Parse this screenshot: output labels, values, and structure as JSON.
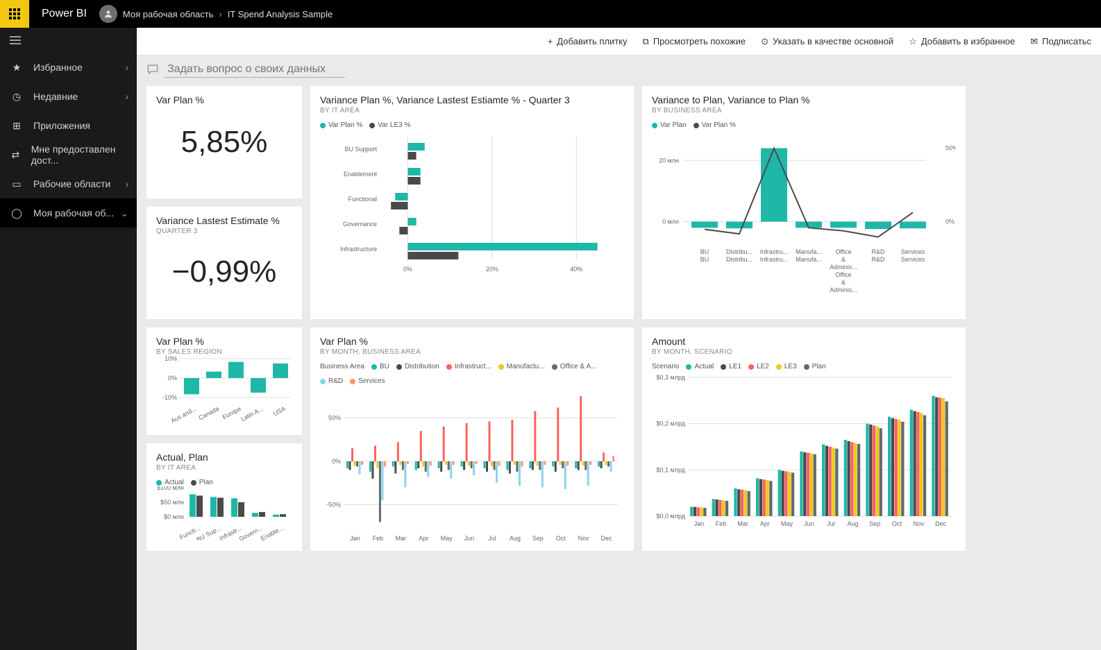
{
  "brand": "Power BI",
  "breadcrumb": {
    "workspace": "Моя рабочая область",
    "report": "IT Spend Analysis Sample"
  },
  "sidebar": {
    "items": [
      {
        "icon": "★",
        "label": "Избранное",
        "chev": "›"
      },
      {
        "icon": "◷",
        "label": "Недавние",
        "chev": "›"
      },
      {
        "icon": "⊞",
        "label": "Приложения",
        "chev": ""
      },
      {
        "icon": "⇄",
        "label": "Мне предоставлен дост...",
        "chev": ""
      },
      {
        "icon": "▭",
        "label": "Рабочие области",
        "chev": "›"
      },
      {
        "icon": "◯",
        "label": "Моя рабочая об...",
        "chev": "⌄"
      }
    ]
  },
  "toolbar": [
    {
      "icon": "+",
      "label": "Добавить плитку"
    },
    {
      "icon": "⧉",
      "label": "Просмотреть похожие"
    },
    {
      "icon": "⊙",
      "label": "Указать в качестве основной"
    },
    {
      "icon": "☆",
      "label": "Добавить в избранное"
    },
    {
      "icon": "✉",
      "label": "Подписатьс"
    }
  ],
  "qna_placeholder": "Задать вопрос о своих данных",
  "colors": {
    "teal": "#1fb8a8",
    "dark": "#4a4a4a",
    "yellow": "#f2c811",
    "red": "#fd625e",
    "blue": "#5f6b6d",
    "lightblue": "#8ad4eb",
    "orange": "#fe9666",
    "purple": "#a66999",
    "grid": "#e0e0e0",
    "text": "#666"
  },
  "tiles": {
    "kpi1": {
      "title": "Var Plan %",
      "value": "5,85%"
    },
    "kpi2": {
      "title": "Variance Lastest Estimate %",
      "sub": "QUARTER 3",
      "value": "−0,99%"
    },
    "hbar": {
      "title": "Variance Plan %, Variance Lastest Estiamte % - Quarter 3",
      "sub": "BY IT AREA",
      "legend": [
        {
          "label": "Var Plan %",
          "c": "teal"
        },
        {
          "label": "Var LE3 %",
          "c": "dark"
        }
      ],
      "categories": [
        "BU Support",
        "Enablement",
        "Functional",
        "Governance",
        "Infrastructure"
      ],
      "series": [
        {
          "c": "teal",
          "values": [
            4,
            3,
            -3,
            2,
            45
          ]
        },
        {
          "c": "dark",
          "values": [
            2,
            3,
            -4,
            -2,
            12
          ]
        }
      ],
      "xticks": [
        "0%",
        "20%",
        "40%"
      ],
      "xlim": [
        -6,
        50
      ]
    },
    "combo": {
      "title": "Variance to Plan, Variance to Plan %",
      "sub": "BY BUSINESS AREA",
      "legend": [
        {
          "label": "Var Plan",
          "c": "teal"
        },
        {
          "label": "Var Plan %",
          "c": "dark"
        }
      ],
      "categories": [
        "BU BU",
        "Distribu... Distribu...",
        "Infrastru... Infrastru...",
        "Manufa... Manufa...",
        "Office & Adminis... Office & Adminis...",
        "R&D R&D",
        "Services Services"
      ],
      "bars": [
        -2,
        -2.2,
        24,
        -2,
        -2,
        -2.4,
        -2.2
      ],
      "line": [
        -5,
        -8,
        48,
        -4,
        -6,
        -10,
        6
      ],
      "y1ticks": [
        "0 млн",
        "20 млн"
      ],
      "y2ticks": [
        "0%",
        "50%"
      ],
      "y1lim": [
        -6,
        28
      ]
    },
    "region": {
      "title": "Var Plan %",
      "sub": "BY SALES REGION",
      "categories": [
        "Aus and...",
        "Canada",
        "Europe",
        "Latin A...",
        "USA"
      ],
      "values": [
        -10,
        4,
        10,
        -9,
        9
      ],
      "yticks": [
        "-10%",
        "0%",
        "10%"
      ],
      "ylim": [
        -12,
        12
      ],
      "c": "teal"
    },
    "actualplan": {
      "title": "Actual, Plan",
      "sub": "BY IT AREA",
      "legend": [
        {
          "label": "Actual",
          "c": "teal"
        },
        {
          "label": "Plan",
          "c": "dark"
        }
      ],
      "categories": [
        "Functi...",
        "BU Sup...",
        "Infrastr...",
        "Govern...",
        "Enable..."
      ],
      "series": [
        {
          "c": "teal",
          "values": [
            85,
            75,
            70,
            15,
            8
          ]
        },
        {
          "c": "dark",
          "values": [
            80,
            72,
            55,
            18,
            10
          ]
        }
      ],
      "yticks": [
        "$0 млн",
        "$50 млн",
        "$100 млн"
      ],
      "ylim": [
        0,
        110
      ]
    },
    "monthbiz": {
      "title": "Var Plan %",
      "sub": "BY MONTH, BUSINESS AREA",
      "legend_title": "Business Area",
      "legend": [
        {
          "label": "BU",
          "c": "teal"
        },
        {
          "label": "Distribution",
          "c": "dark"
        },
        {
          "label": "Infrastruct...",
          "c": "red"
        },
        {
          "label": "Manufactu...",
          "c": "yellow"
        },
        {
          "label": "Office & A...",
          "c": "blue"
        },
        {
          "label": "R&D",
          "c": "lightblue"
        },
        {
          "label": "Services",
          "c": "orange"
        }
      ],
      "months": [
        "Jan",
        "Feb",
        "Mar",
        "Apr",
        "May",
        "Jun",
        "Jul",
        "Aug",
        "Sep",
        "Oct",
        "Nov",
        "Dec"
      ],
      "yticks": [
        "-50%",
        "0%",
        "50%"
      ],
      "ylim": [
        -70,
        80
      ],
      "data": [
        [
          -8,
          -10,
          15,
          -5,
          -6,
          -15,
          -4
        ],
        [
          -12,
          -20,
          18,
          -8,
          -70,
          -45,
          -6
        ],
        [
          -6,
          -14,
          22,
          -4,
          -10,
          -30,
          -3
        ],
        [
          -10,
          -8,
          35,
          -6,
          -12,
          -18,
          -5
        ],
        [
          -8,
          -12,
          40,
          -4,
          -10,
          -20,
          -4
        ],
        [
          -6,
          -10,
          44,
          -5,
          -8,
          -16,
          -3
        ],
        [
          -8,
          -12,
          46,
          -6,
          -10,
          -25,
          -5
        ],
        [
          -10,
          -14,
          48,
          -4,
          -12,
          -28,
          -6
        ],
        [
          -8,
          -10,
          58,
          -5,
          -10,
          -30,
          -4
        ],
        [
          -6,
          -12,
          62,
          -4,
          -8,
          -32,
          -5
        ],
        [
          -8,
          -10,
          75,
          -5,
          -10,
          -28,
          -4
        ],
        [
          -6,
          -8,
          10,
          -4,
          -6,
          -12,
          6
        ]
      ]
    },
    "amount": {
      "title": "Amount",
      "sub": "BY MONTH, SCENARIO",
      "legend_title": "Scenario",
      "legend": [
        {
          "label": "Actual",
          "c": "teal"
        },
        {
          "label": "LE1",
          "c": "dark"
        },
        {
          "label": "LE2",
          "c": "red"
        },
        {
          "label": "LE3",
          "c": "yellow"
        },
        {
          "label": "Plan",
          "c": "blue"
        }
      ],
      "months": [
        "Jan",
        "Feb",
        "Mar",
        "Apr",
        "May",
        "Jun",
        "Jul",
        "Aug",
        "Sep",
        "Oct",
        "Nov",
        "Dec"
      ],
      "yticks": [
        "$0,0 млрд",
        "$0,1 млрд",
        "$0,2 млрд",
        "$0,3 млрд"
      ],
      "ylim": [
        0,
        0.3
      ],
      "data": [
        [
          0.02,
          0.02,
          0.019,
          0.019,
          0.018
        ],
        [
          0.037,
          0.036,
          0.035,
          0.034,
          0.033
        ],
        [
          0.06,
          0.058,
          0.057,
          0.056,
          0.054
        ],
        [
          0.082,
          0.08,
          0.079,
          0.078,
          0.076
        ],
        [
          0.1,
          0.098,
          0.097,
          0.096,
          0.094
        ],
        [
          0.14,
          0.138,
          0.137,
          0.136,
          0.134
        ],
        [
          0.155,
          0.152,
          0.15,
          0.148,
          0.146
        ],
        [
          0.165,
          0.162,
          0.16,
          0.158,
          0.156
        ],
        [
          0.2,
          0.198,
          0.196,
          0.194,
          0.19
        ],
        [
          0.215,
          0.212,
          0.21,
          0.208,
          0.204
        ],
        [
          0.23,
          0.227,
          0.225,
          0.223,
          0.218
        ],
        [
          0.26,
          0.257,
          0.256,
          0.255,
          0.248
        ]
      ]
    }
  }
}
